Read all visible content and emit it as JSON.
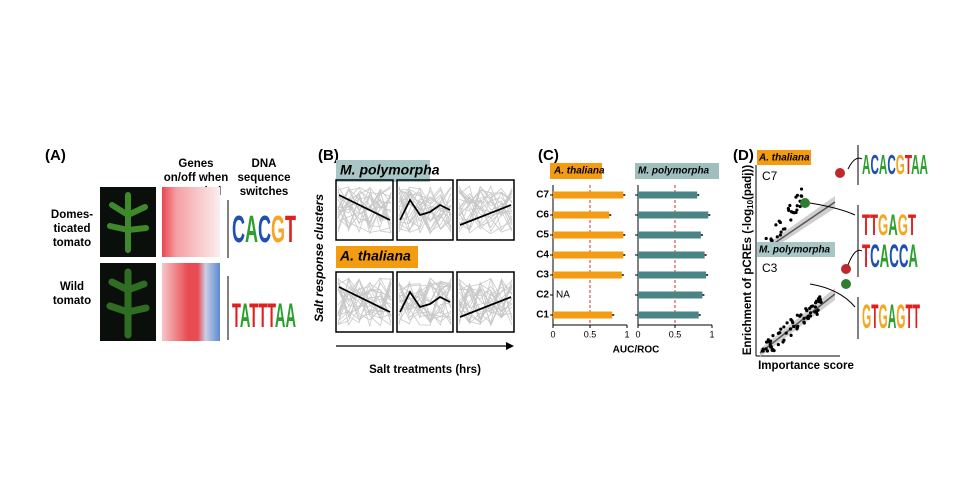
{
  "panel_a": {
    "label": "(A)",
    "column_headers": [
      [
        "Genes",
        "on/off when",
        "wounded"
      ],
      [
        "DNA",
        "sequence",
        "switches"
      ]
    ],
    "rows": [
      [
        "Domes-",
        "ticated",
        "tomato"
      ],
      [
        "Wild",
        "tomato"
      ]
    ],
    "logos": [
      "CACGT",
      "TATTTAA"
    ]
  },
  "panel_b": {
    "label": "(B)",
    "species": [
      "M. polymorpha",
      "A. thaliana"
    ],
    "y_label": "Salt response clusters",
    "x_label": "Salt treatments (hrs)"
  },
  "chart_data": [
    {
      "type": "bar",
      "label": "(C)",
      "title": "A. thaliana",
      "color": "#f39c12",
      "title_color": "#f39c12",
      "orientation": "horizontal",
      "categories": [
        "C7",
        "C6",
        "C5",
        "C4",
        "C3",
        "C2",
        "C1"
      ],
      "values": [
        0.95,
        0.76,
        0.95,
        0.95,
        0.93,
        null,
        0.8
      ],
      "value_labels": [
        null,
        null,
        null,
        null,
        null,
        "NA",
        null
      ],
      "xlim": [
        0,
        1
      ],
      "xticks": [
        0,
        0.5,
        1
      ],
      "reference_line": 0.5,
      "xlabel": "AUC/ROC"
    },
    {
      "type": "bar",
      "title": "M. polymorpha",
      "color": "#4a8585",
      "title_color": "#9fbfbf",
      "orientation": "horizontal",
      "categories": [
        "C7",
        "C6",
        "C5",
        "C4",
        "C3",
        "C2",
        "C1"
      ],
      "values": [
        0.8,
        0.95,
        0.85,
        0.9,
        0.92,
        0.87,
        0.82
      ],
      "xlim": [
        0,
        1
      ],
      "xticks": [
        0,
        0.5,
        1
      ],
      "reference_line": 0.5
    }
  ],
  "panel_d": {
    "label": "(D)",
    "plots": [
      {
        "species": "A. thaliana",
        "cluster": "C7",
        "logos": [
          "ACACGTAA",
          "TTGAGT"
        ]
      },
      {
        "species": "M. polymorpha",
        "cluster": "C3",
        "logos": [
          "TCACCA",
          "GTGAGTT"
        ]
      }
    ],
    "y_label": [
      "Enrichment of pCREs (-log",
      "10",
      "(padj))"
    ],
    "x_label": "Importance score"
  }
}
